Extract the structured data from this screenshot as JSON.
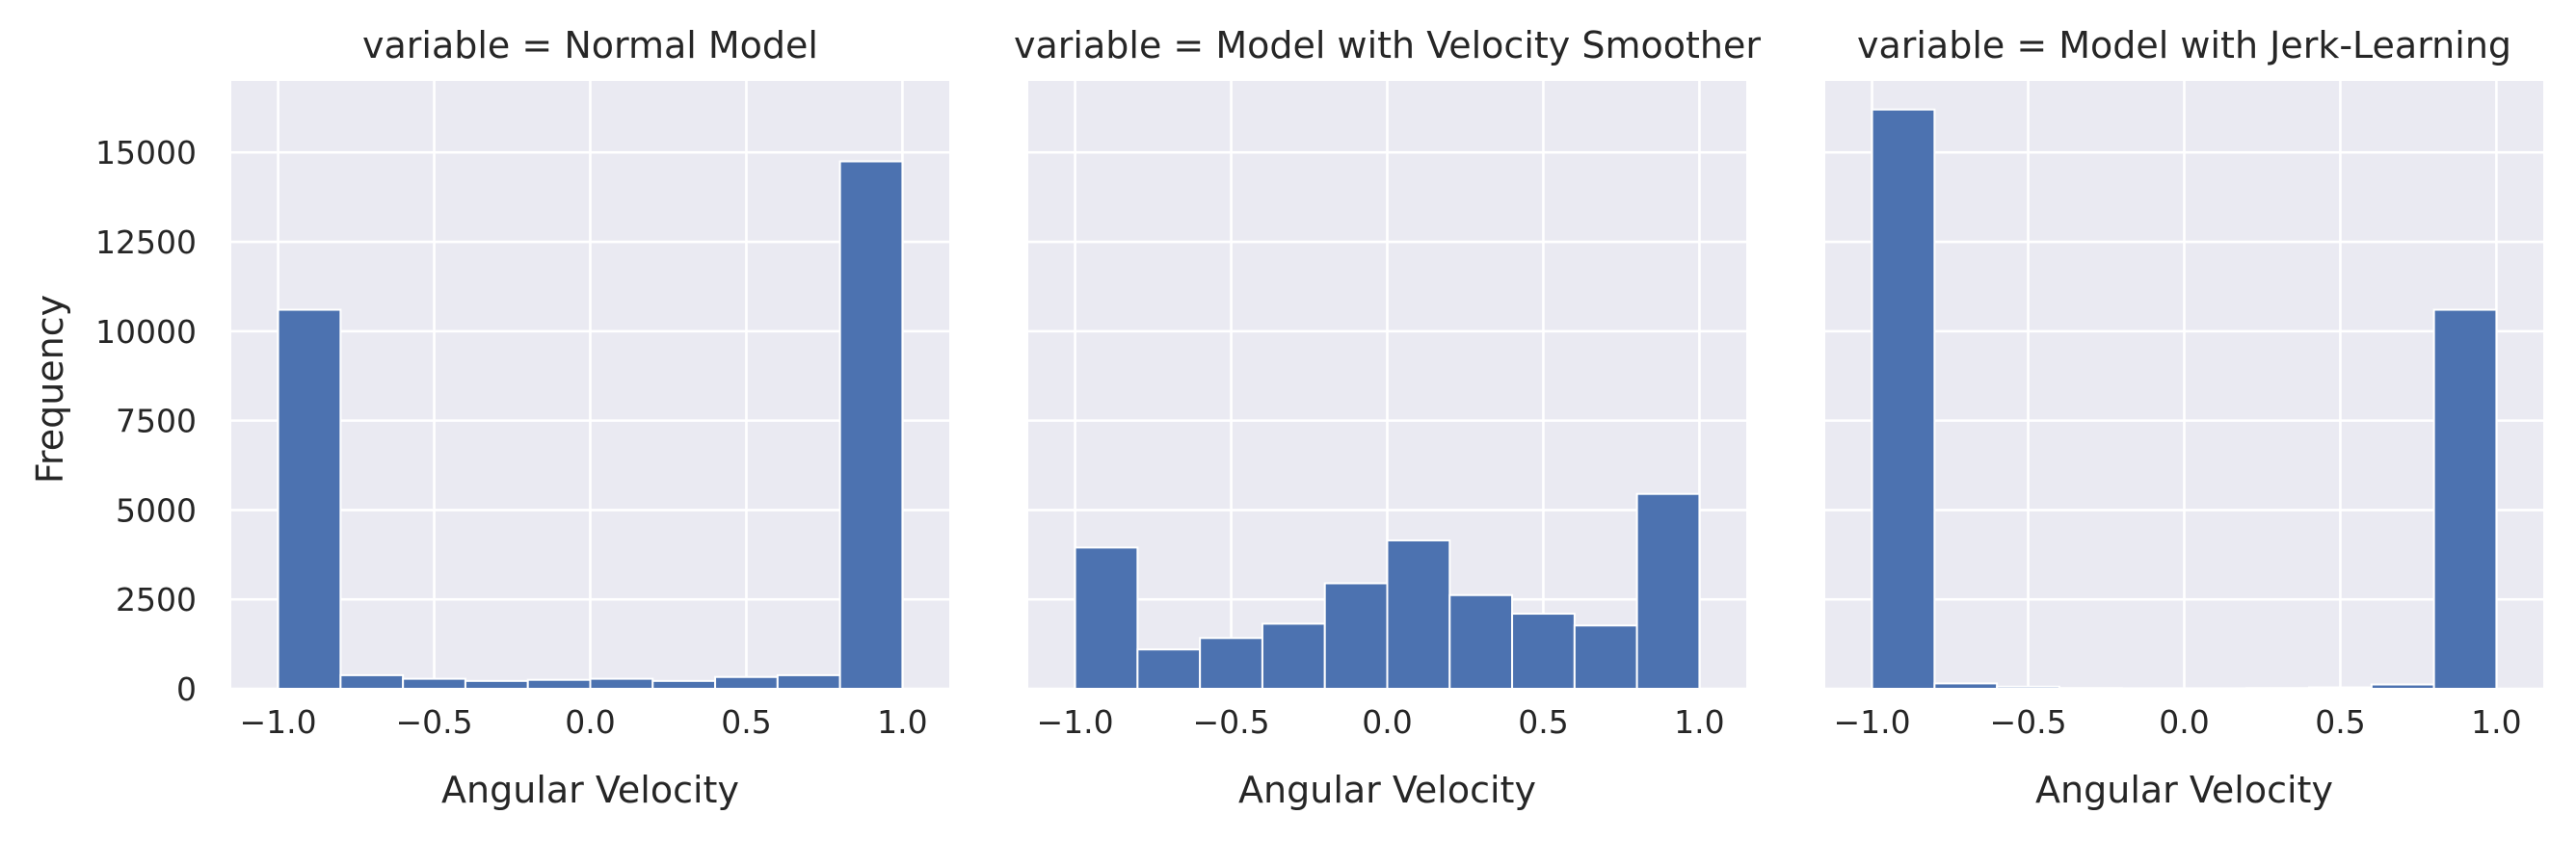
{
  "chart_data": {
    "type": "bar",
    "x_ticks": [
      -1.0,
      -0.5,
      0.0,
      0.5,
      1.0
    ],
    "x_tick_labels": [
      "−1.0",
      "−0.5",
      "0.0",
      "0.5",
      "1.0"
    ],
    "y_ticks": [
      0,
      2500,
      5000,
      7500,
      10000,
      12500,
      15000
    ],
    "y_tick_labels": [
      "0",
      "2500",
      "5000",
      "7500",
      "10000",
      "12500",
      "15000"
    ],
    "xlim": [
      -1.15,
      1.15
    ],
    "ylim": [
      0,
      17000
    ],
    "xlabel": "Angular Velocity",
    "ylabel": "Frequency",
    "grid": true,
    "bin_edges": [
      -1.0,
      -0.8,
      -0.6,
      -0.4,
      -0.2,
      0.0,
      0.2,
      0.4,
      0.6,
      0.8,
      1.0
    ],
    "panels": [
      {
        "title": "variable = Normal Model",
        "values": [
          10600,
          380,
          280,
          220,
          250,
          280,
          220,
          330,
          380,
          14750
        ]
      },
      {
        "title": "variable = Model with Velocity Smoother",
        "values": [
          3950,
          1100,
          1420,
          1820,
          2950,
          4150,
          2620,
          2100,
          1770,
          5450
        ]
      },
      {
        "title": "variable = Model with Jerk-Learning",
        "values": [
          16200,
          150,
          60,
          20,
          15,
          15,
          20,
          40,
          120,
          10600
        ]
      }
    ]
  }
}
